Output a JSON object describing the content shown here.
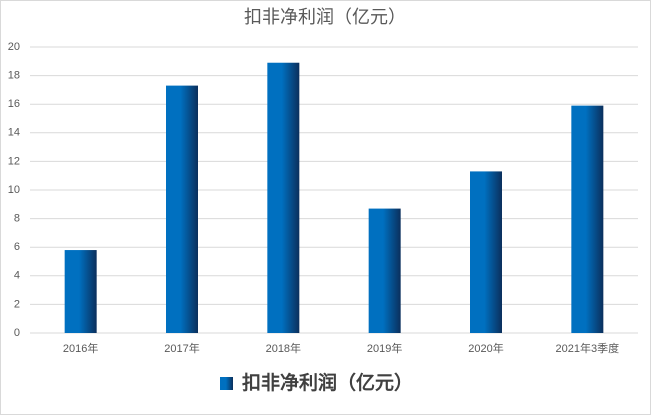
{
  "chart_data": {
    "type": "bar",
    "title": "扣非净利润（亿元）",
    "categories": [
      "2016年",
      "2017年",
      "2018年",
      "2019年",
      "2020年",
      "2021年3季度"
    ],
    "series": [
      {
        "name": "扣非净利润（亿元）",
        "color": "#0070c0",
        "values": [
          5.8,
          17.3,
          18.9,
          8.7,
          11.3,
          15.9
        ]
      }
    ],
    "ylim": [
      0,
      20
    ],
    "yticks": [
      0,
      2,
      4,
      6,
      8,
      10,
      12,
      14,
      16,
      18,
      20
    ],
    "grid": true,
    "legend": "bottom"
  }
}
